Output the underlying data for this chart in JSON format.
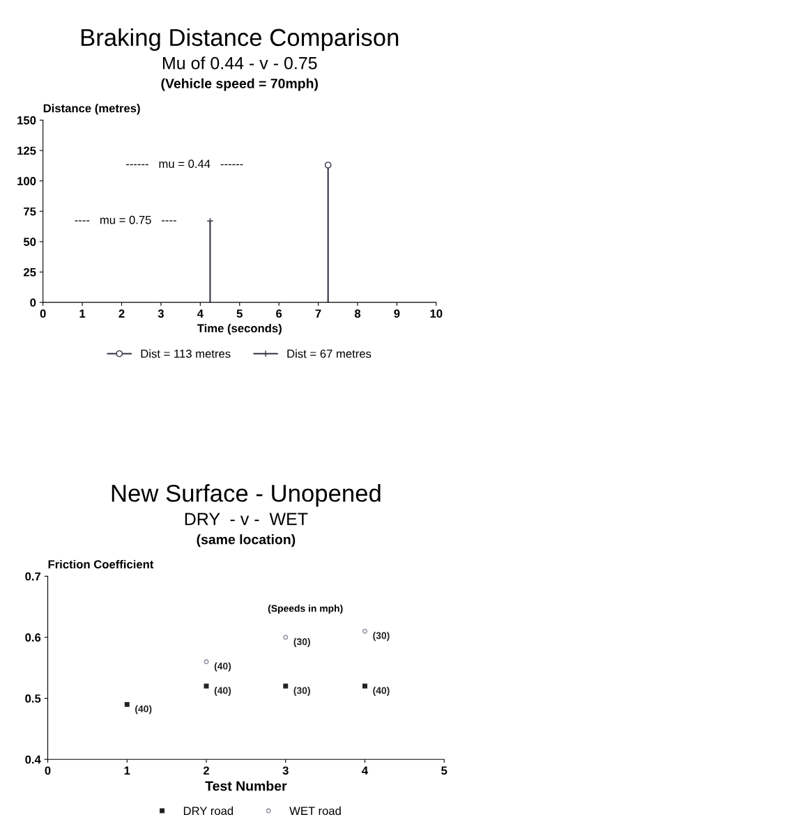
{
  "chart_data": [
    {
      "type": "lollipop",
      "title": "Braking Distance Comparison",
      "subtitle": "Mu of 0.44 - v - 0.75",
      "xlabel": "Time (seconds)",
      "ylabel": "Distance (metres)",
      "series": [
        {
          "name": "Dist = 113 metres",
          "color": "#333344",
          "x": [
            7.25
          ],
          "values": [
            113
          ],
          "marker": "circle"
        },
        {
          "name": "Dist = 67 metres",
          "color": "#333344",
          "x": [
            4.25
          ],
          "values": [
            67
          ],
          "marker": "cross"
        }
      ],
      "annotations": [
        "(Vehicle speed = 70mph)",
        "------   mu = 0.44   ------",
        "----   mu = 0.75   ----"
      ],
      "xlim": [
        0,
        10
      ],
      "xticks": [
        0,
        1,
        2,
        3,
        4,
        5,
        6,
        7,
        8,
        9,
        10
      ],
      "ylim": [
        0,
        150
      ],
      "yticks": [
        0,
        25,
        50,
        75,
        100,
        125,
        150
      ],
      "grid": false,
      "legend": "bottom"
    },
    {
      "type": "scatter",
      "title": "New Surface - Unopened",
      "subtitle": "DRY  - v -  WET",
      "xlabel": "Test Number",
      "ylabel": "Friction Coefficient",
      "series": [
        {
          "name": "DRY road",
          "color": "#222222",
          "x": [
            1,
            2,
            3,
            4
          ],
          "values": [
            0.49,
            0.52,
            0.52,
            0.52
          ],
          "marker": "square"
        },
        {
          "name": "WET road",
          "color": "#888899",
          "x": [
            2,
            3,
            4
          ],
          "values": [
            0.56,
            0.6,
            0.61
          ],
          "marker": "circle"
        }
      ],
      "annotations": [
        "(same location)",
        "(Speeds in mph)",
        {
          "text": "(40)",
          "x": 1,
          "y": 0.49
        },
        {
          "text": "(40)",
          "x": 2,
          "y": 0.52
        },
        {
          "text": "(30)",
          "x": 3,
          "y": 0.52
        },
        {
          "text": "(40)",
          "x": 4,
          "y": 0.52
        },
        {
          "text": "(40)",
          "x": 2,
          "y": 0.56
        },
        {
          "text": "(30)",
          "x": 3,
          "y": 0.6
        },
        {
          "text": "(30)",
          "x": 4,
          "y": 0.61
        }
      ],
      "xlim": [
        0,
        5
      ],
      "xticks": [
        0,
        1,
        2,
        3,
        4,
        5
      ],
      "ylim": [
        0.4,
        0.7
      ],
      "yticks": [
        {
          "value": 0.4,
          "label": "0.4"
        },
        {
          "value": 0.5,
          "label": "0.5"
        },
        {
          "value": 0.6,
          "label": "0.6"
        },
        {
          "value": 0.7,
          "label": "0.7"
        }
      ],
      "grid": false,
      "legend": "bottom"
    }
  ]
}
